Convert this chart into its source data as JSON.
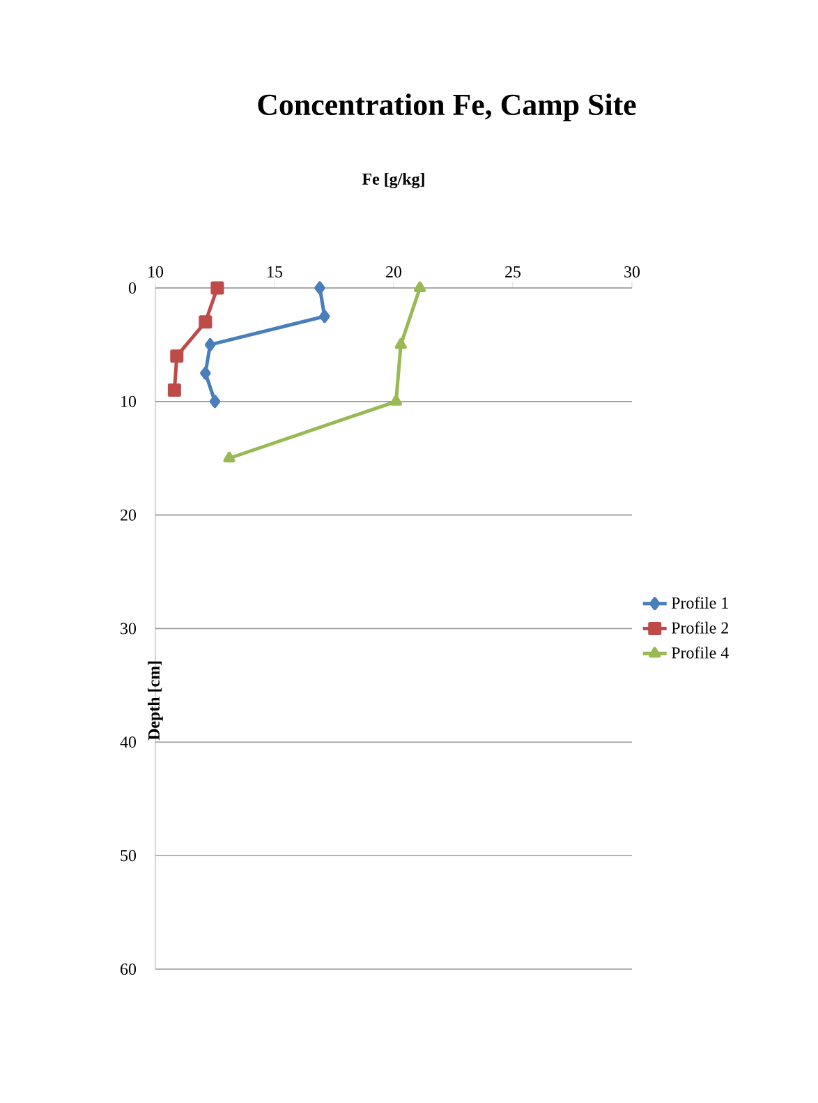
{
  "chart_data": {
    "type": "line",
    "title": "Concentration Fe, Camp Site",
    "xlabel": "Fe [g/kg]",
    "ylabel": "Depth [cm]",
    "xlim": [
      10,
      30
    ],
    "xticks": [
      10,
      15,
      20,
      25,
      30
    ],
    "ylim": [
      60,
      0
    ],
    "yticks": [
      0,
      10,
      20,
      30,
      40,
      50,
      60
    ],
    "grid": "y",
    "legend": "right",
    "line_style": "solid",
    "series": [
      {
        "name": "Profile 1",
        "color": "#4a7ebb",
        "marker": "diamond",
        "x": [
          16.9,
          17.1,
          12.3,
          12.1,
          12.5
        ],
        "values": [
          0,
          2.5,
          5,
          7.5,
          10
        ]
      },
      {
        "name": "Profile 2",
        "color": "#be4b48",
        "marker": "square",
        "x": [
          12.6,
          12.1,
          10.9,
          10.8
        ],
        "values": [
          0,
          3,
          6,
          9
        ]
      },
      {
        "name": "Profile 4",
        "color": "#98b954",
        "marker": "triangle",
        "x": [
          21.1,
          20.3,
          20.1,
          13.1
        ],
        "values": [
          0,
          5,
          10,
          15
        ]
      }
    ]
  }
}
